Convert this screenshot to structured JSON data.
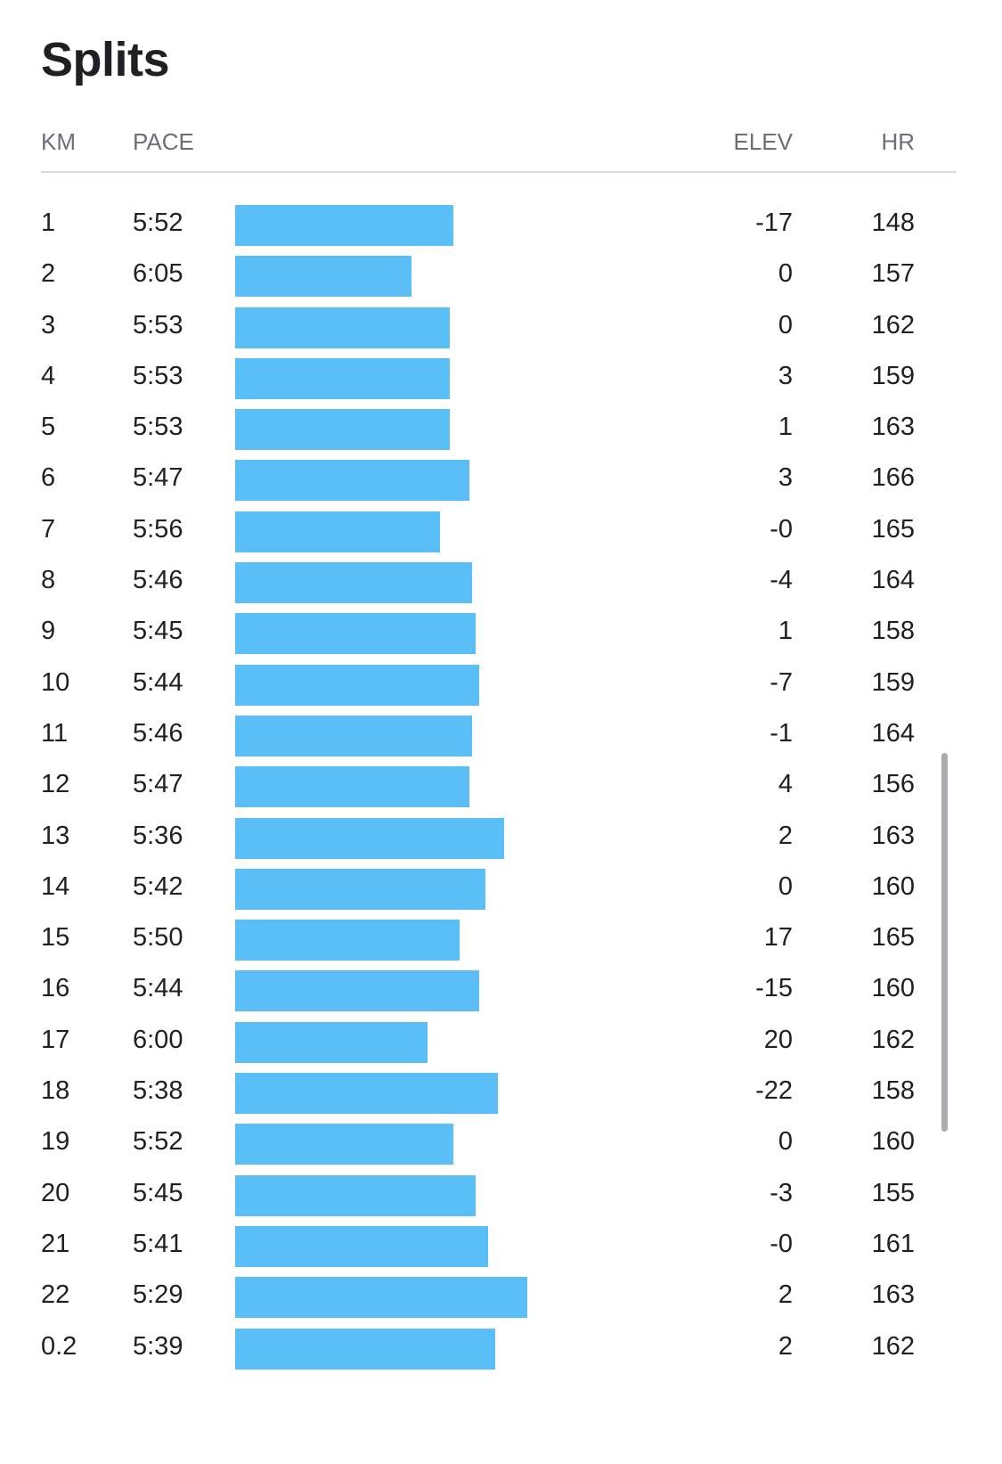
{
  "title": "Splits",
  "headers": {
    "km": "KM",
    "pace": "PACE",
    "elev": "ELEV",
    "hr": "HR"
  },
  "colors": {
    "bar": "#5bbff7",
    "header_text": "#6b6f78",
    "text": "#1f1f24",
    "divider": "#d9dade"
  },
  "splits": [
    {
      "km": "1",
      "pace": "5:52",
      "elev": "-17",
      "hr": "148"
    },
    {
      "km": "2",
      "pace": "6:05",
      "elev": "0",
      "hr": "157"
    },
    {
      "km": "3",
      "pace": "5:53",
      "elev": "0",
      "hr": "162"
    },
    {
      "km": "4",
      "pace": "5:53",
      "elev": "3",
      "hr": "159"
    },
    {
      "km": "5",
      "pace": "5:53",
      "elev": "1",
      "hr": "163"
    },
    {
      "km": "6",
      "pace": "5:47",
      "elev": "3",
      "hr": "166"
    },
    {
      "km": "7",
      "pace": "5:56",
      "elev": "-0",
      "hr": "165"
    },
    {
      "km": "8",
      "pace": "5:46",
      "elev": "-4",
      "hr": "164"
    },
    {
      "km": "9",
      "pace": "5:45",
      "elev": "1",
      "hr": "158"
    },
    {
      "km": "10",
      "pace": "5:44",
      "elev": "-7",
      "hr": "159"
    },
    {
      "km": "11",
      "pace": "5:46",
      "elev": "-1",
      "hr": "164"
    },
    {
      "km": "12",
      "pace": "5:47",
      "elev": "4",
      "hr": "156"
    },
    {
      "km": "13",
      "pace": "5:36",
      "elev": "2",
      "hr": "163"
    },
    {
      "km": "14",
      "pace": "5:42",
      "elev": "0",
      "hr": "160"
    },
    {
      "km": "15",
      "pace": "5:50",
      "elev": "17",
      "hr": "165"
    },
    {
      "km": "16",
      "pace": "5:44",
      "elev": "-15",
      "hr": "160"
    },
    {
      "km": "17",
      "pace": "6:00",
      "elev": "20",
      "hr": "162"
    },
    {
      "km": "18",
      "pace": "5:38",
      "elev": "-22",
      "hr": "158"
    },
    {
      "km": "19",
      "pace": "5:52",
      "elev": "0",
      "hr": "160"
    },
    {
      "km": "20",
      "pace": "5:45",
      "elev": "-3",
      "hr": "155"
    },
    {
      "km": "21",
      "pace": "5:41",
      "elev": "-0",
      "hr": "161"
    },
    {
      "km": "22",
      "pace": "5:29",
      "elev": "2",
      "hr": "163"
    },
    {
      "km": "0.2",
      "pace": "5:39",
      "elev": "2",
      "hr": "162"
    }
  ]
}
